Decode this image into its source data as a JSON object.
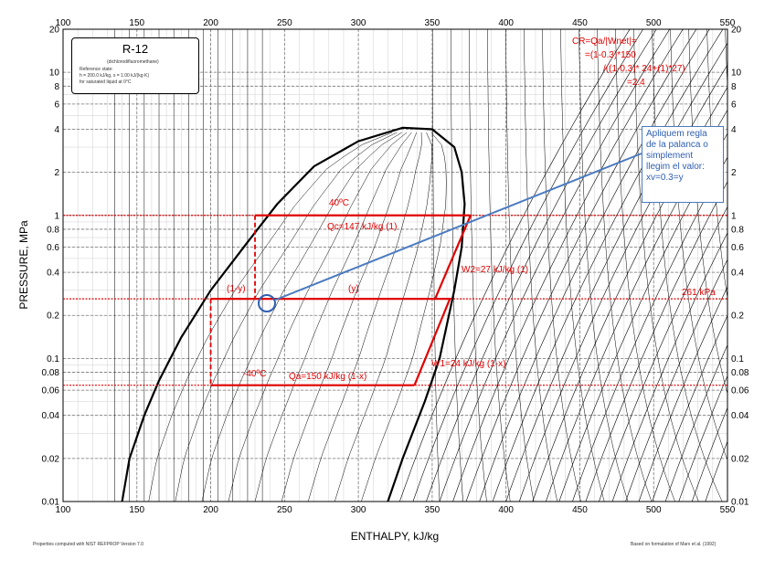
{
  "axes": {
    "x_label": "ENTHALPY, kJ/kg",
    "y_label": "PRESSURE, MPa",
    "x_ticks": [
      "100",
      "150",
      "200",
      "250",
      "300",
      "350",
      "400",
      "450",
      "500",
      "550"
    ],
    "x_values": [
      100,
      150,
      200,
      250,
      300,
      350,
      400,
      450,
      500,
      550
    ],
    "y_ticks": [
      "0.01",
      "0.02",
      "0.04",
      "0.06",
      "0.08",
      "0.1",
      "0.2",
      "0.4",
      "0.6",
      "0.8",
      "1",
      "2",
      "4",
      "6",
      "8",
      "10",
      "20"
    ],
    "y_values": [
      0.01,
      0.02,
      0.04,
      0.06,
      0.08,
      0.1,
      0.2,
      0.4,
      0.6,
      0.8,
      1,
      2,
      4,
      6,
      8,
      10,
      20
    ]
  },
  "legend_box": {
    "title": "R-12",
    "line1": "(dichlorodifluoromethane)",
    "line2": "Reference state:",
    "line3": "h = 200.0 kJ/kg, s = 1.00 kJ/(kg·K)",
    "line4": "for saturated liquid at 0°C"
  },
  "footnotes": {
    "left": "Properties computed with NIST REFPROP Version 7.0",
    "right": "Based on formulation of Marx et al. (1992)"
  },
  "annotations": {
    "cr_line1": "CR=Qa/|Wnet|=",
    "cr_line2": "=(1-0.3)*150",
    "cr_line3": "/((1-0.3)* 24+(1)*27)",
    "cr_line4": "=2.4",
    "temp_high": "40ºC",
    "temp_low": "-40ºC",
    "qc": "Qc=147 kJ/kg (1)",
    "w2": "W2=27 kJ/kg (1)",
    "w1": "W1=24 kJ/kg (1-x)",
    "qa": "Qa=150 kJ/kg (1-x)",
    "pressure_261": "261 kPa",
    "label_1_minus_y": "(1-y)",
    "label_y": "(y)",
    "callout_text": "Apliquem regla de la palanca o simplement llegim el valor: xv=0.3=y"
  },
  "chart_data": {
    "type": "diagram",
    "refrigerant": "R-12",
    "x_range": [
      100,
      550
    ],
    "y_range": [
      0.01,
      20
    ],
    "y_scale": "log",
    "saturation_dome": {
      "liquid": [
        [
          140,
          0.01
        ],
        [
          145,
          0.02
        ],
        [
          155,
          0.04
        ],
        [
          165,
          0.07
        ],
        [
          180,
          0.14
        ],
        [
          200,
          0.3
        ],
        [
          225,
          0.65
        ],
        [
          245,
          1.2
        ],
        [
          270,
          2.2
        ],
        [
          300,
          3.3
        ],
        [
          330,
          4.1
        ]
      ],
      "vapor": [
        [
          330,
          4.1
        ],
        [
          350,
          4.0
        ],
        [
          365,
          3.0
        ],
        [
          370,
          2.0
        ],
        [
          372,
          1.2
        ],
        [
          370,
          0.6
        ],
        [
          365,
          0.3
        ],
        [
          355,
          0.1
        ],
        [
          345,
          0.05
        ],
        [
          330,
          0.02
        ],
        [
          320,
          0.01
        ]
      ]
    },
    "cycle": {
      "high_pressure": 1.0,
      "intermediate_pressure": 0.261,
      "low_pressure": 0.065,
      "points": [
        [
          230,
          1.0
        ],
        [
          376,
          1.0
        ],
        [
          352,
          0.261
        ],
        [
          338,
          0.065
        ],
        [
          200,
          0.065
        ],
        [
          200,
          0.261
        ],
        [
          230,
          0.261
        ]
      ]
    },
    "marked_point": [
      241,
      0.261
    ]
  }
}
